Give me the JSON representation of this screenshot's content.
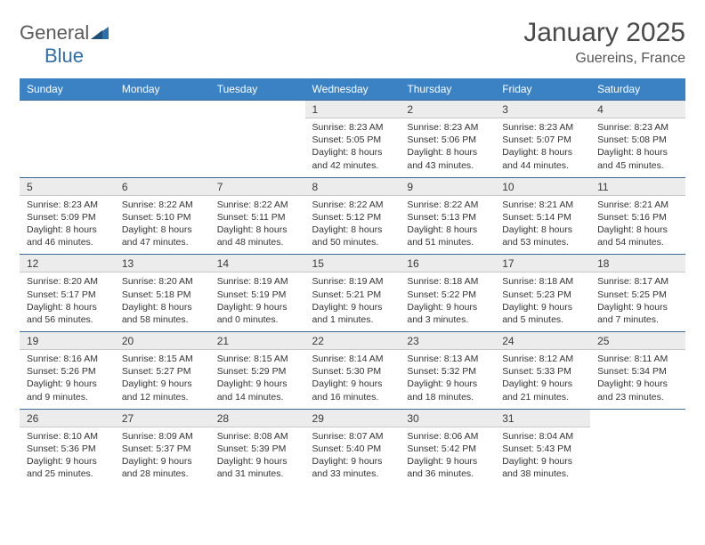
{
  "brand": {
    "name_part1": "General",
    "name_part2": "Blue"
  },
  "title": "January 2025",
  "location": "Guereins, France",
  "colors": {
    "header_bg": "#3b82c4",
    "header_text": "#ffffff",
    "daynum_bg": "#ececec",
    "row_border": "#3b6a96",
    "body_text": "#333333"
  },
  "day_headers": [
    "Sunday",
    "Monday",
    "Tuesday",
    "Wednesday",
    "Thursday",
    "Friday",
    "Saturday"
  ],
  "weeks": [
    [
      null,
      null,
      null,
      {
        "n": "1",
        "sr": "8:23 AM",
        "ss": "5:05 PM",
        "dh": "8",
        "dm": "42"
      },
      {
        "n": "2",
        "sr": "8:23 AM",
        "ss": "5:06 PM",
        "dh": "8",
        "dm": "43"
      },
      {
        "n": "3",
        "sr": "8:23 AM",
        "ss": "5:07 PM",
        "dh": "8",
        "dm": "44"
      },
      {
        "n": "4",
        "sr": "8:23 AM",
        "ss": "5:08 PM",
        "dh": "8",
        "dm": "45"
      }
    ],
    [
      {
        "n": "5",
        "sr": "8:23 AM",
        "ss": "5:09 PM",
        "dh": "8",
        "dm": "46"
      },
      {
        "n": "6",
        "sr": "8:22 AM",
        "ss": "5:10 PM",
        "dh": "8",
        "dm": "47"
      },
      {
        "n": "7",
        "sr": "8:22 AM",
        "ss": "5:11 PM",
        "dh": "8",
        "dm": "48"
      },
      {
        "n": "8",
        "sr": "8:22 AM",
        "ss": "5:12 PM",
        "dh": "8",
        "dm": "50"
      },
      {
        "n": "9",
        "sr": "8:22 AM",
        "ss": "5:13 PM",
        "dh": "8",
        "dm": "51"
      },
      {
        "n": "10",
        "sr": "8:21 AM",
        "ss": "5:14 PM",
        "dh": "8",
        "dm": "53"
      },
      {
        "n": "11",
        "sr": "8:21 AM",
        "ss": "5:16 PM",
        "dh": "8",
        "dm": "54"
      }
    ],
    [
      {
        "n": "12",
        "sr": "8:20 AM",
        "ss": "5:17 PM",
        "dh": "8",
        "dm": "56"
      },
      {
        "n": "13",
        "sr": "8:20 AM",
        "ss": "5:18 PM",
        "dh": "8",
        "dm": "58"
      },
      {
        "n": "14",
        "sr": "8:19 AM",
        "ss": "5:19 PM",
        "dh": "9",
        "dm": "0"
      },
      {
        "n": "15",
        "sr": "8:19 AM",
        "ss": "5:21 PM",
        "dh": "9",
        "dm": "1"
      },
      {
        "n": "16",
        "sr": "8:18 AM",
        "ss": "5:22 PM",
        "dh": "9",
        "dm": "3"
      },
      {
        "n": "17",
        "sr": "8:18 AM",
        "ss": "5:23 PM",
        "dh": "9",
        "dm": "5"
      },
      {
        "n": "18",
        "sr": "8:17 AM",
        "ss": "5:25 PM",
        "dh": "9",
        "dm": "7"
      }
    ],
    [
      {
        "n": "19",
        "sr": "8:16 AM",
        "ss": "5:26 PM",
        "dh": "9",
        "dm": "9"
      },
      {
        "n": "20",
        "sr": "8:15 AM",
        "ss": "5:27 PM",
        "dh": "9",
        "dm": "12"
      },
      {
        "n": "21",
        "sr": "8:15 AM",
        "ss": "5:29 PM",
        "dh": "9",
        "dm": "14"
      },
      {
        "n": "22",
        "sr": "8:14 AM",
        "ss": "5:30 PM",
        "dh": "9",
        "dm": "16"
      },
      {
        "n": "23",
        "sr": "8:13 AM",
        "ss": "5:32 PM",
        "dh": "9",
        "dm": "18"
      },
      {
        "n": "24",
        "sr": "8:12 AM",
        "ss": "5:33 PM",
        "dh": "9",
        "dm": "21"
      },
      {
        "n": "25",
        "sr": "8:11 AM",
        "ss": "5:34 PM",
        "dh": "9",
        "dm": "23"
      }
    ],
    [
      {
        "n": "26",
        "sr": "8:10 AM",
        "ss": "5:36 PM",
        "dh": "9",
        "dm": "25"
      },
      {
        "n": "27",
        "sr": "8:09 AM",
        "ss": "5:37 PM",
        "dh": "9",
        "dm": "28"
      },
      {
        "n": "28",
        "sr": "8:08 AM",
        "ss": "5:39 PM",
        "dh": "9",
        "dm": "31"
      },
      {
        "n": "29",
        "sr": "8:07 AM",
        "ss": "5:40 PM",
        "dh": "9",
        "dm": "33"
      },
      {
        "n": "30",
        "sr": "8:06 AM",
        "ss": "5:42 PM",
        "dh": "9",
        "dm": "36"
      },
      {
        "n": "31",
        "sr": "8:04 AM",
        "ss": "5:43 PM",
        "dh": "9",
        "dm": "38"
      },
      null
    ]
  ],
  "labels": {
    "sunrise": "Sunrise:",
    "sunset": "Sunset:",
    "daylight": "Daylight:",
    "hours": "hours",
    "and": "and",
    "minutes": "minutes."
  }
}
